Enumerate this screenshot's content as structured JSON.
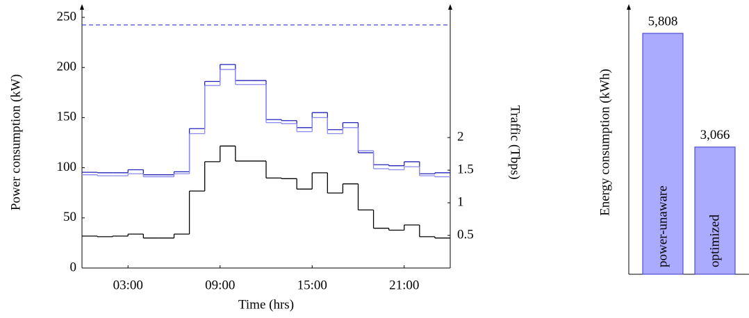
{
  "chart_data": [
    {
      "type": "step",
      "xlabel": "Time (hrs)",
      "ylabel": "Power consumption (kW)",
      "y2label": "Traffic (Tbps)",
      "x": [
        0,
        1,
        2,
        3,
        4,
        5,
        6,
        7,
        8,
        9,
        10,
        11,
        12,
        13,
        14,
        15,
        16,
        17,
        18,
        19,
        20,
        21,
        22,
        23
      ],
      "xlim": [
        0,
        24
      ],
      "xticks": [
        {
          "value": 3,
          "label": "03:00"
        },
        {
          "value": 9,
          "label": "09:00"
        },
        {
          "value": 15,
          "label": "15:00"
        },
        {
          "value": 21,
          "label": "21:00"
        }
      ],
      "ylim": [
        0,
        257.6
      ],
      "yticks": [
        0,
        50,
        100,
        150,
        200,
        250
      ],
      "y2lim": [
        0,
        3.96
      ],
      "y2ticks": [
        0.5,
        1,
        1.5,
        2
      ],
      "series": [
        {
          "color": "#2222bb",
          "values": [
            95.5,
            95,
            95,
            98,
            93,
            93,
            96,
            139,
            186,
            203,
            187,
            187,
            148,
            147,
            140,
            155,
            138,
            145,
            115,
            103,
            102,
            106,
            94,
            95
          ]
        },
        {
          "color": "#8888ee",
          "values": [
            93,
            92,
            92,
            94,
            91,
            91,
            94,
            134,
            182,
            198,
            183,
            183,
            145,
            144,
            136,
            150,
            134,
            140,
            117,
            99,
            98,
            101,
            92,
            91
          ]
        },
        {
          "color": "#000000",
          "axis": "y2",
          "values": [
            0.49,
            0.48,
            0.49,
            0.52,
            0.46,
            0.46,
            0.52,
            1.18,
            1.63,
            1.87,
            1.64,
            1.64,
            1.38,
            1.37,
            1.21,
            1.46,
            1.15,
            1.29,
            0.89,
            0.61,
            0.58,
            0.66,
            0.48,
            0.46
          ]
        }
      ],
      "hlines": [
        {
          "y": 242.4,
          "color": "#3333cc",
          "style": "dashed"
        }
      ]
    },
    {
      "type": "bar",
      "ylabel": "Energy consumption (kWh)",
      "categories": [
        "power-unaware",
        "optimized"
      ],
      "values": [
        5808,
        3066
      ],
      "value_labels": [
        "5,808",
        "3,066"
      ],
      "ylim": [
        0,
        6377
      ],
      "color": "#aaaaff",
      "edgecolor": "#3333cc"
    }
  ]
}
